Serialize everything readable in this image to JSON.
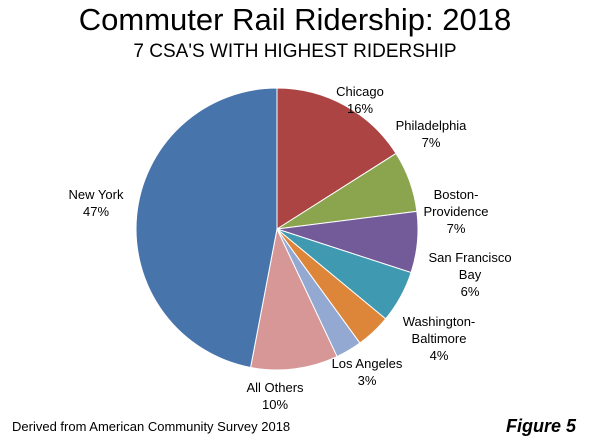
{
  "chart_data": {
    "type": "pie",
    "title": "Commuter Rail Ridership: 2018",
    "subtitle": "7 CSA'S WITH HIGHEST RIDERSHIP",
    "slices": [
      {
        "label_lines": [
          "Chicago"
        ],
        "value": 16,
        "display": "16%",
        "color": "#AB4442"
      },
      {
        "label_lines": [
          "Philadelphia"
        ],
        "value": 7,
        "display": "7%",
        "color": "#8BA44E"
      },
      {
        "label_lines": [
          "Boston-",
          "Providence"
        ],
        "value": 7,
        "display": "7%",
        "color": "#735A99"
      },
      {
        "label_lines": [
          "San Francisco",
          "Bay"
        ],
        "value": 6,
        "display": "6%",
        "color": "#3F9AB1"
      },
      {
        "label_lines": [
          "Washington-",
          "Baltimore"
        ],
        "value": 4,
        "display": "4%",
        "color": "#DD8538"
      },
      {
        "label_lines": [
          "Los Angeles"
        ],
        "value": 3,
        "display": "3%",
        "color": "#94A9D2"
      },
      {
        "label_lines": [
          "All Others"
        ],
        "value": 10,
        "display": "10%",
        "color": "#D69796"
      },
      {
        "label_lines": [
          "New York"
        ],
        "value": 47,
        "display": "47%",
        "color": "#4774AB"
      }
    ]
  },
  "footnote": "Derived from American Community Survey 2018",
  "figure_label": "Figure 5"
}
